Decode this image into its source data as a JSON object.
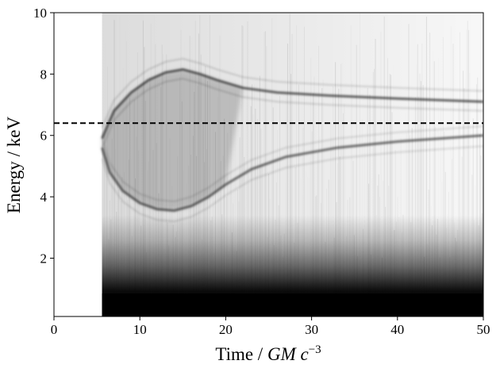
{
  "chart_data": {
    "type": "heatmap",
    "title": "",
    "xlabel_prefix": "Time / ",
    "xlabel_math": "GM c",
    "xlabel_exp": "−3",
    "ylabel": "Energy / keV",
    "xlim": [
      0,
      50
    ],
    "ylim": [
      0.1,
      10
    ],
    "x_ticks": [
      0,
      10,
      20,
      30,
      40,
      50
    ],
    "x_tick_labels": [
      "0",
      "10",
      "20",
      "30",
      "40",
      "50"
    ],
    "y_ticks": [
      2,
      4,
      6,
      8,
      10
    ],
    "y_tick_labels": [
      "2",
      "4",
      "6",
      "8",
      "10"
    ],
    "reference_line": {
      "y": 6.4,
      "style": "dashed",
      "color": "#000000"
    },
    "colormap": "greys",
    "grid": false,
    "signal_onset_time": 5.6,
    "features": {
      "upper_branch": [
        {
          "t": 5.6,
          "e": 5.9
        },
        {
          "t": 7,
          "e": 6.8
        },
        {
          "t": 9,
          "e": 7.4
        },
        {
          "t": 11,
          "e": 7.8
        },
        {
          "t": 13,
          "e": 8.05
        },
        {
          "t": 15,
          "e": 8.15
        },
        {
          "t": 17,
          "e": 8.0
        },
        {
          "t": 19,
          "e": 7.8
        },
        {
          "t": 22,
          "e": 7.55
        },
        {
          "t": 26,
          "e": 7.4
        },
        {
          "t": 32,
          "e": 7.3
        },
        {
          "t": 40,
          "e": 7.2
        },
        {
          "t": 50,
          "e": 7.1
        }
      ],
      "lower_branch": [
        {
          "t": 5.6,
          "e": 5.6
        },
        {
          "t": 6.5,
          "e": 4.8
        },
        {
          "t": 8,
          "e": 4.2
        },
        {
          "t": 10,
          "e": 3.8
        },
        {
          "t": 12,
          "e": 3.6
        },
        {
          "t": 14,
          "e": 3.55
        },
        {
          "t": 16,
          "e": 3.7
        },
        {
          "t": 18,
          "e": 4.0
        },
        {
          "t": 20,
          "e": 4.4
        },
        {
          "t": 23,
          "e": 4.9
        },
        {
          "t": 27,
          "e": 5.3
        },
        {
          "t": 33,
          "e": 5.6
        },
        {
          "t": 40,
          "e": 5.8
        },
        {
          "t": 50,
          "e": 6.0
        }
      ]
    }
  }
}
